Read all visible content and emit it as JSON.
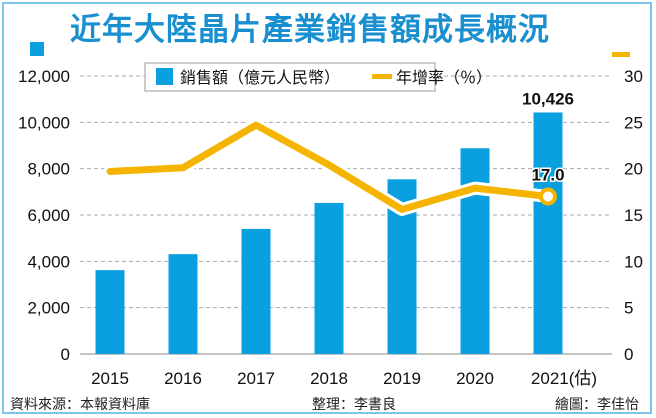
{
  "title": "近年大陸晶片產業銷售額成長概況",
  "footer": {
    "source": "資料來源：本報資料庫",
    "editor": "整理：李書良",
    "artist": "繪圖：李佳怡"
  },
  "chart_data": {
    "type": "bar+line",
    "title": "近年大陸晶片產業銷售額成長概況",
    "categories": [
      "2015",
      "2016",
      "2017",
      "2018",
      "2019",
      "2020",
      "2021(估)"
    ],
    "series": [
      {
        "name": "銷售額（億元人民幣）",
        "type": "bar",
        "axis": "left",
        "color": "#0aa0e0",
        "values": [
          3620,
          4310,
          5400,
          6520,
          7540,
          8880,
          10426
        ]
      },
      {
        "name": "年增率（％）",
        "type": "line",
        "axis": "right",
        "color": "#f5b400",
        "values": [
          19.7,
          20.1,
          24.7,
          20.4,
          15.6,
          17.9,
          17.0
        ]
      }
    ],
    "data_labels": {
      "bar_last": "10,426",
      "line_last": "17.0"
    },
    "left_axis": {
      "ylim": [
        0,
        12000
      ],
      "ticks": [
        "0",
        "2,000",
        "4,000",
        "6,000",
        "8,000",
        "10,000",
        "12,000"
      ]
    },
    "right_axis": {
      "ylim": [
        0,
        30
      ],
      "ticks": [
        "0",
        "5",
        "10",
        "15",
        "20",
        "25",
        "30"
      ]
    },
    "grid": true,
    "legend": "top-center"
  }
}
